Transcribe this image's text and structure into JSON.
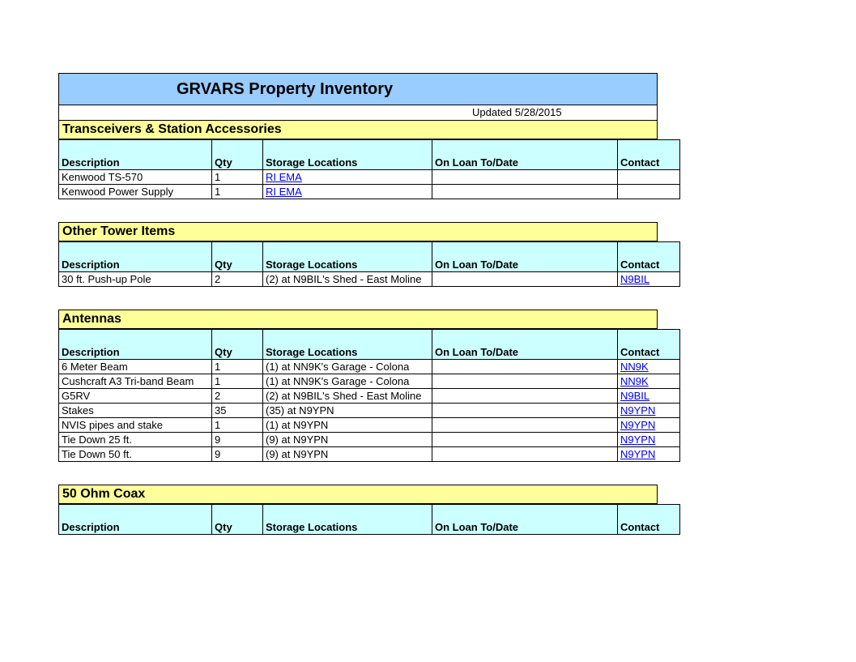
{
  "title": "GRVARS Property Inventory",
  "updated": "Updated 5/28/2015",
  "columns": {
    "desc": "Description",
    "qty": "Qty",
    "loc": "Storage Locations",
    "loan": "On Loan To/Date",
    "contact": "Contact"
  },
  "sections": [
    {
      "name": "Transceivers & Station Accessories",
      "rows": [
        {
          "desc": "Kenwood TS-570",
          "qty": "1",
          "loc": "RI EMA",
          "loc_link": true,
          "loan": "",
          "contact": ""
        },
        {
          "desc": "Kenwood Power Supply",
          "qty": "1",
          "loc": "RI EMA",
          "loc_link": true,
          "loan": "",
          "contact": ""
        }
      ]
    },
    {
      "name": "Other Tower Items",
      "rows": [
        {
          "desc": "30 ft. Push-up Pole",
          "qty": "2",
          "loc": "(2) at N9BIL's Shed - East Moline",
          "loan": "",
          "contact": "N9BIL",
          "contact_link": true
        }
      ]
    },
    {
      "name": "Antennas",
      "rows": [
        {
          "desc": "6 Meter Beam",
          "qty": "1",
          "loc": "(1) at NN9K's Garage - Colona",
          "loan": "",
          "contact": "NN9K",
          "contact_link": true
        },
        {
          "desc": "Cushcraft A3 Tri-band Beam",
          "qty": "1",
          "loc": "(1) at NN9K's Garage - Colona",
          "loan": "",
          "contact": "NN9K",
          "contact_link": true
        },
        {
          "desc": "G5RV",
          "qty": "2",
          "loc": "(2) at N9BIL's Shed - East Moline",
          "loan": "",
          "contact": "N9BIL",
          "contact_link": true
        },
        {
          "desc": "Stakes",
          "qty": "35",
          "loc": "(35) at N9YPN",
          "loan": "",
          "contact": "N9YPN",
          "contact_link": true
        },
        {
          "desc": "NVIS pipes and stake",
          "qty": "1",
          "loc": "(1) at N9YPN",
          "loan": "",
          "contact": "N9YPN",
          "contact_link": true
        },
        {
          "desc": "Tie Down 25 ft.",
          "qty": "9",
          "loc": "(9) at N9YPN",
          "loan": "",
          "contact": "N9YPN",
          "contact_link": true
        },
        {
          "desc": "Tie Down 50 ft.",
          "qty": "9",
          "loc": "(9) at N9YPN",
          "loan": "",
          "contact": "N9YPN",
          "contact_link": true
        }
      ]
    },
    {
      "name": "50 Ohm Coax",
      "rows": []
    }
  ],
  "colors": {
    "title_bg": "#99ccff",
    "section_bg": "#ffff99",
    "header_bg": "#ccffff",
    "link": "#0000ee",
    "border": "#000000"
  }
}
